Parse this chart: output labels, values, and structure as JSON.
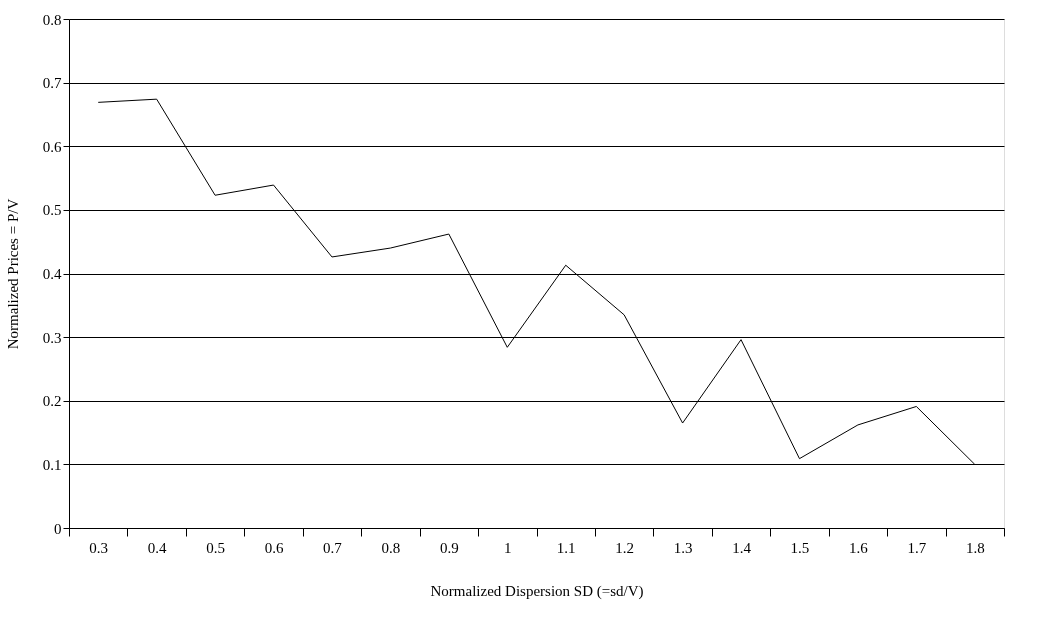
{
  "chart_data": {
    "type": "line",
    "xlabel": "Normalized Dispersion SD (=sd/V)",
    "ylabel": "Normalized Prices = P/V",
    "categories": [
      "0.3",
      "0.4",
      "0.5",
      "0.6",
      "0.7",
      "0.8",
      "0.9",
      "1",
      "1.1",
      "1.2",
      "1.3",
      "1.4",
      "1.5",
      "1.6",
      "1.7",
      "1.8"
    ],
    "series": [
      {
        "color": "#000000",
        "values": [
          0.669,
          0.674,
          0.523,
          0.539,
          0.426,
          0.44,
          0.462,
          0.284,
          0.413,
          0.335,
          0.165,
          0.296,
          0.109,
          0.162,
          0.191,
          0.1
        ]
      }
    ],
    "ylim": [
      0,
      0.8
    ],
    "yticks": [
      0,
      0.1,
      0.2,
      0.3,
      0.4,
      0.5,
      0.6,
      0.7,
      0.8
    ],
    "grid": "y",
    "marker": "none",
    "line_style": "solid"
  }
}
